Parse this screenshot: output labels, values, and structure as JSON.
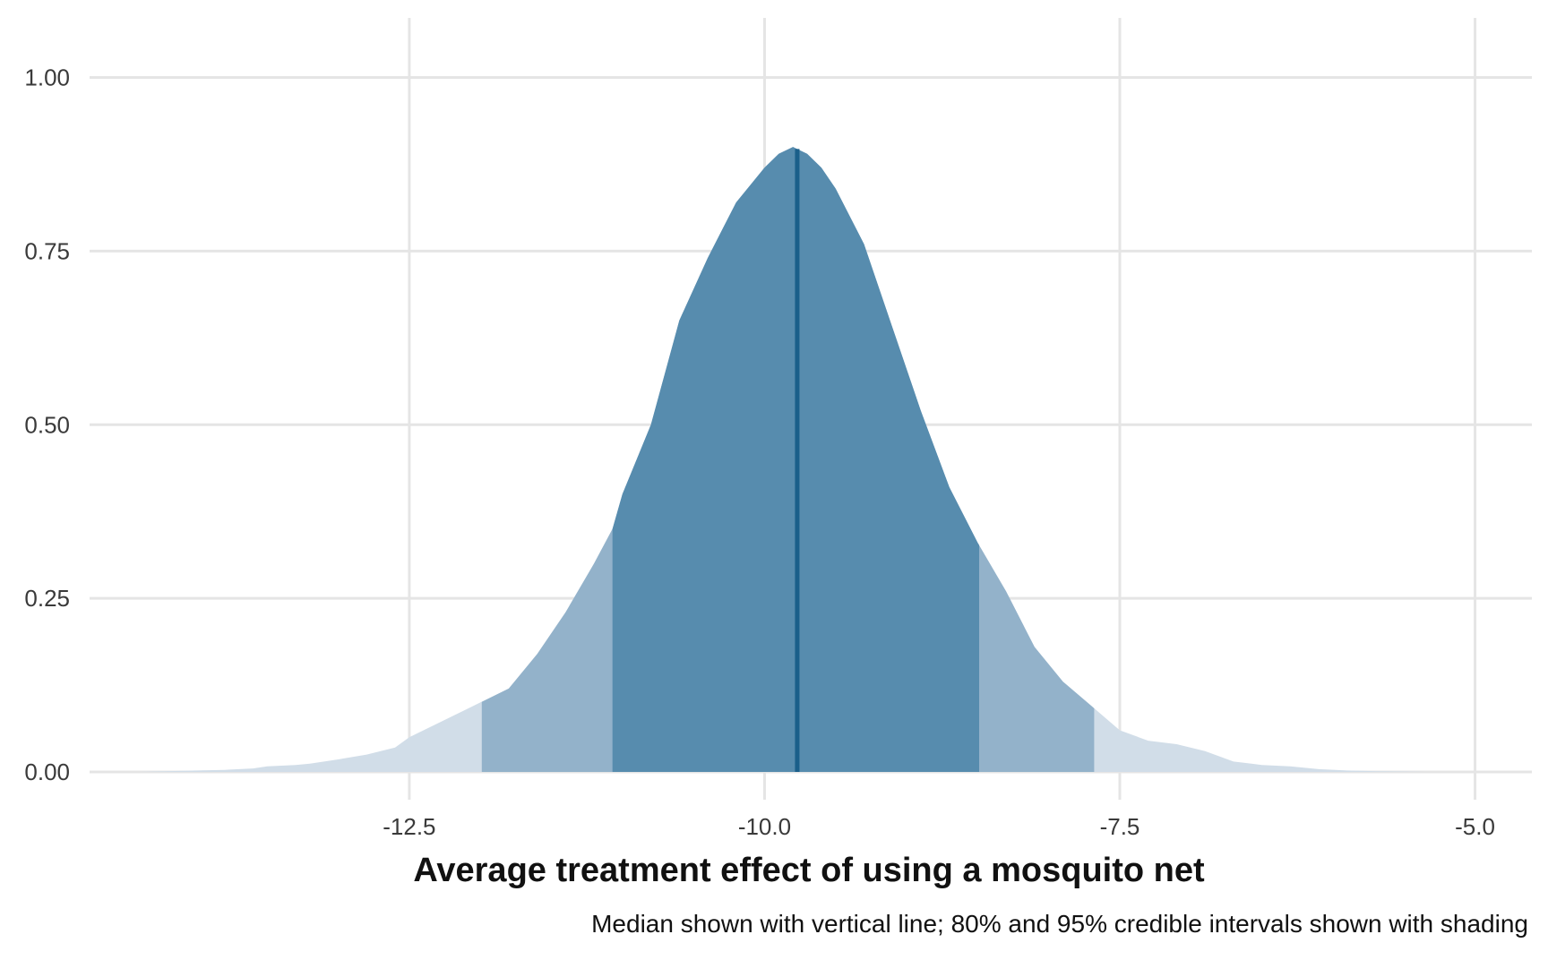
{
  "chart_data": {
    "type": "area",
    "title": "",
    "xlabel": "Average treatment effect of using a mosquito net",
    "ylabel": "",
    "caption": "Median shown with vertical line; 80% and 95% credible intervals shown with shading",
    "xlim": [
      -14.75,
      -4.6
    ],
    "ylim": [
      -0.04,
      1.06
    ],
    "x_ticks": [
      -12.5,
      -10.0,
      -7.5,
      -5.0
    ],
    "x_tick_labels": [
      "-12.5",
      "-10.0",
      "-7.5",
      "-5.0"
    ],
    "y_ticks": [
      0.0,
      0.25,
      0.5,
      0.75,
      1.0
    ],
    "y_tick_labels": [
      "0.00",
      "0.25",
      "0.50",
      "0.75",
      "1.00"
    ],
    "grid": true,
    "median": -9.77,
    "interval_80": [
      -11.07,
      -8.49
    ],
    "interval_95": [
      -11.99,
      -7.68
    ],
    "colors": {
      "outer": "#d1dde8",
      "interval_95": "#93b2ca",
      "interval_80": "#578cae",
      "median": "#1b5f8a",
      "grid": "#e5e5e5"
    },
    "density": {
      "x": [
        -14.4,
        -14.0,
        -13.8,
        -13.6,
        -13.5,
        -13.3,
        -13.2,
        -13.0,
        -12.8,
        -12.6,
        -12.5,
        -12.3,
        -12.1,
        -12.0,
        -11.8,
        -11.6,
        -11.4,
        -11.2,
        -11.07,
        -11.0,
        -10.8,
        -10.6,
        -10.4,
        -10.2,
        -10.0,
        -9.9,
        -9.8,
        -9.7,
        -9.6,
        -9.5,
        -9.3,
        -9.1,
        -8.9,
        -8.7,
        -8.5,
        -8.3,
        -8.1,
        -7.9,
        -7.7,
        -7.5,
        -7.3,
        -7.1,
        -6.9,
        -6.7,
        -6.5,
        -6.3,
        -6.1,
        -5.9,
        -5.7,
        -5.5,
        -5.35
      ],
      "y": [
        0.0,
        0.002,
        0.003,
        0.005,
        0.008,
        0.01,
        0.012,
        0.018,
        0.025,
        0.035,
        0.05,
        0.07,
        0.09,
        0.1,
        0.12,
        0.17,
        0.23,
        0.3,
        0.35,
        0.4,
        0.5,
        0.65,
        0.74,
        0.82,
        0.87,
        0.89,
        0.9,
        0.89,
        0.87,
        0.84,
        0.76,
        0.64,
        0.52,
        0.41,
        0.33,
        0.26,
        0.18,
        0.13,
        0.095,
        0.06,
        0.045,
        0.04,
        0.03,
        0.015,
        0.01,
        0.008,
        0.004,
        0.002,
        0.001,
        0.0005,
        0.0
      ]
    }
  }
}
